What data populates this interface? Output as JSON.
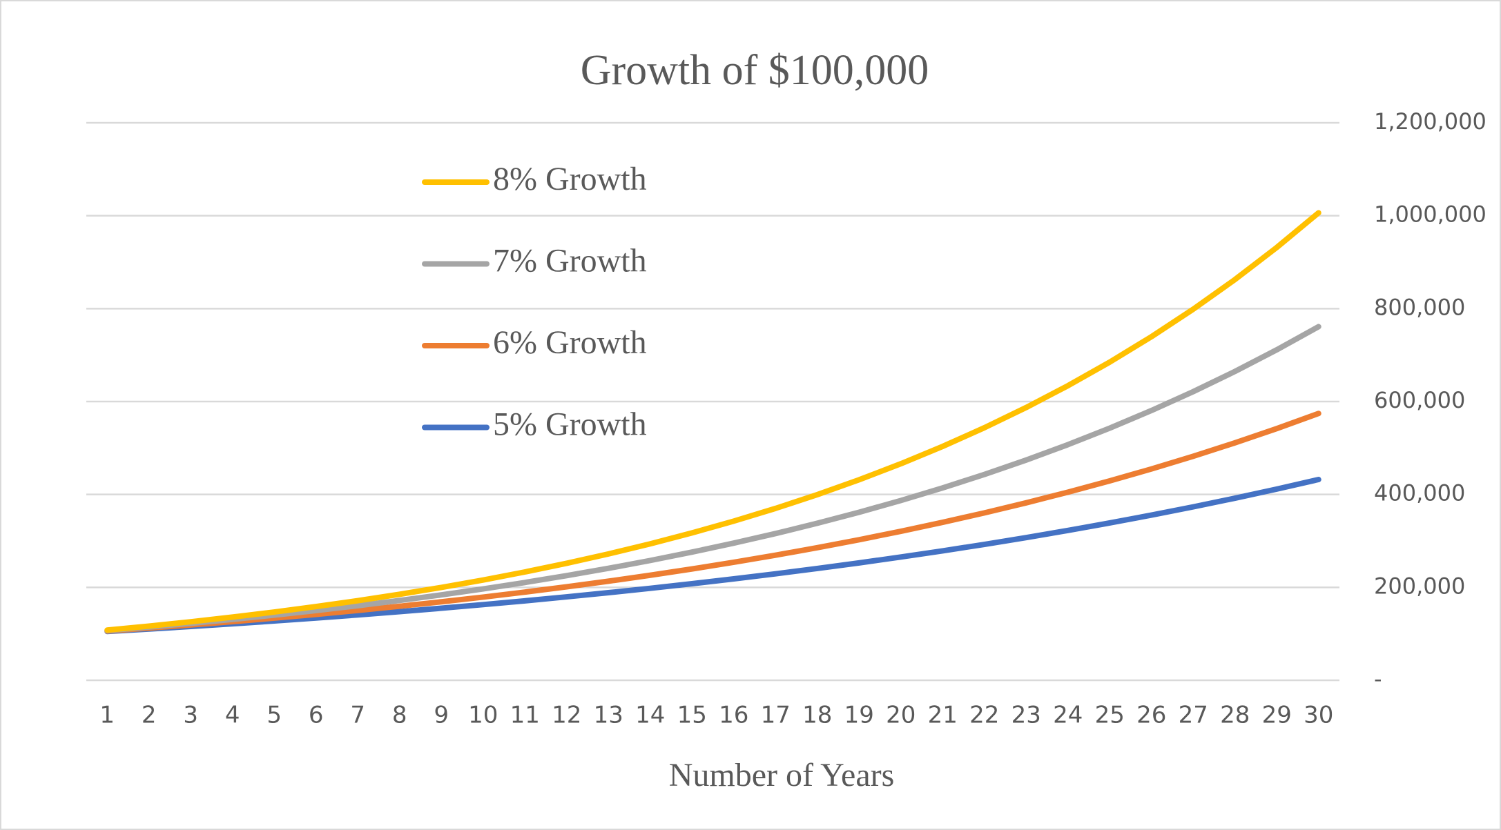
{
  "chart_data": {
    "type": "line",
    "title": "Growth of $100,000",
    "x_label": "Number of Years",
    "categories": [
      1,
      2,
      3,
      4,
      5,
      6,
      7,
      8,
      9,
      10,
      11,
      12,
      13,
      14,
      15,
      16,
      17,
      18,
      19,
      20,
      21,
      22,
      23,
      24,
      25,
      26,
      27,
      28,
      29,
      30
    ],
    "series": [
      {
        "name": "8% Growth",
        "color": "#ffc000",
        "values": [
          108000,
          116640,
          125971,
          136049,
          146933,
          158687,
          171382,
          185093,
          199900,
          215892,
          233164,
          251817,
          271962,
          293719,
          317217,
          342594,
          370002,
          399602,
          431570,
          466096,
          503383,
          543654,
          587146,
          634118,
          684848,
          739635,
          798806,
          862711,
          931727,
          1006266
        ]
      },
      {
        "name": "7% Growth",
        "color": "#a5a5a5",
        "values": [
          107000,
          114490,
          122504,
          131080,
          140255,
          150073,
          160578,
          171819,
          183846,
          196715,
          210485,
          225219,
          240985,
          257853,
          275903,
          295216,
          315882,
          337993,
          361653,
          386968,
          414056,
          443040,
          474053,
          507237,
          542743,
          580735,
          621387,
          664884,
          711426,
          761226
        ]
      },
      {
        "name": "6% Growth",
        "color": "#ed7d31",
        "values": [
          106000,
          112360,
          119102,
          126248,
          133823,
          141852,
          150363,
          159385,
          168948,
          179085,
          189830,
          201220,
          213293,
          226090,
          239656,
          254035,
          269277,
          285434,
          302560,
          320714,
          339956,
          360354,
          381975,
          404893,
          429187,
          454938,
          482235,
          511169,
          541839,
          574349
        ]
      },
      {
        "name": "5% Growth",
        "color": "#4472c4",
        "values": [
          105000,
          110250,
          115763,
          121551,
          127628,
          134010,
          140710,
          147746,
          155133,
          162889,
          171034,
          179586,
          188565,
          197993,
          207893,
          218287,
          229202,
          240662,
          252695,
          265330,
          278596,
          292526,
          307152,
          322510,
          338635,
          355567,
          373346,
          392013,
          411614,
          432194
        ]
      }
    ],
    "ylim": [
      0,
      1200000
    ],
    "yticks": [
      {
        "value": 0,
        "label": "-"
      },
      {
        "value": 200000,
        "label": "200,000"
      },
      {
        "value": 400000,
        "label": "400,000"
      },
      {
        "value": 600000,
        "label": "600,000"
      },
      {
        "value": 800000,
        "label": "800,000"
      },
      {
        "value": 1000000,
        "label": "1,000,000"
      },
      {
        "value": 1200000,
        "label": "1,200,000"
      }
    ],
    "y_axis_side": "right",
    "grid": true,
    "legend": "top-left"
  }
}
